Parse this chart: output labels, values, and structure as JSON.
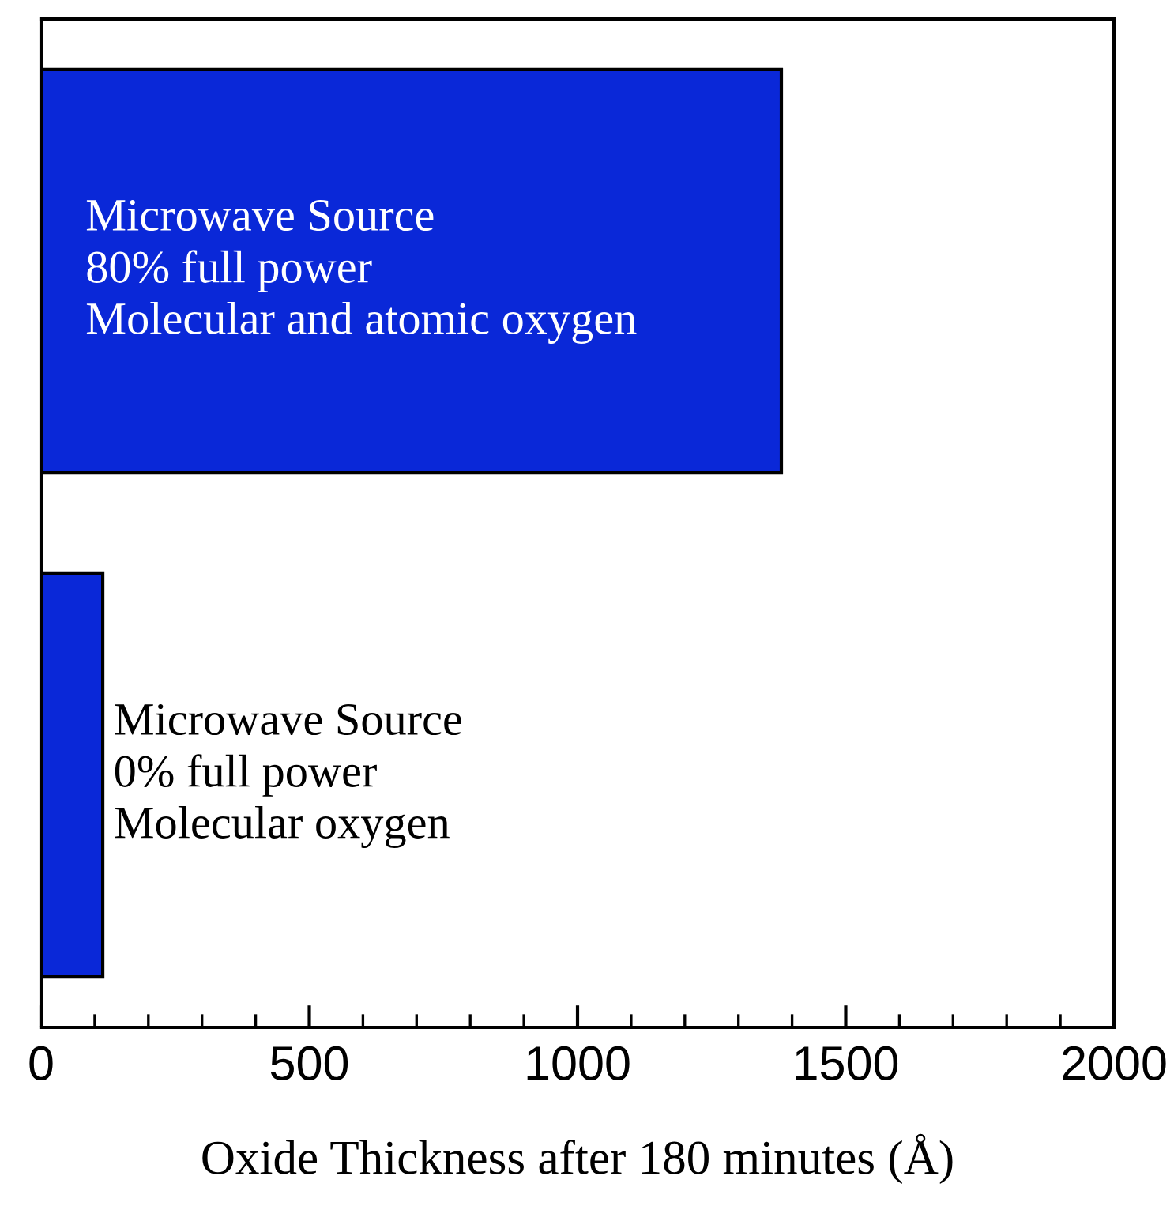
{
  "chart_data": {
    "type": "bar",
    "orientation": "horizontal",
    "xlabel": "Oxide Thickness after 180 minutes (Å)",
    "categories": [
      null,
      null
    ],
    "values": [
      1380,
      115
    ],
    "color": "#0a28d8",
    "xlim": [
      0,
      2000
    ],
    "xticks": [
      0,
      {
        "value": 100,
        "label": null
      },
      {
        "value": 200,
        "label": null
      },
      {
        "value": 300,
        "label": null
      },
      {
        "value": 400,
        "label": null
      },
      500,
      {
        "value": 600,
        "label": null
      },
      {
        "value": 700,
        "label": null
      },
      {
        "value": 800,
        "label": null
      },
      {
        "value": 900,
        "label": null
      },
      1000,
      {
        "value": 1100,
        "label": null
      },
      {
        "value": 1200,
        "label": null
      },
      {
        "value": 1300,
        "label": null
      },
      {
        "value": 1400,
        "label": null
      },
      1500,
      {
        "value": 1600,
        "label": null
      },
      {
        "value": 1700,
        "label": null
      },
      {
        "value": 1800,
        "label": null
      },
      {
        "value": 1900,
        "label": null
      },
      2000
    ],
    "annotations": [
      "Microwave Source\n80% full power\nMolecular and atomic oxygen",
      "Microwave Source\n0% full power\nMolecular oxygen"
    ],
    "grid": false,
    "legend": false
  }
}
